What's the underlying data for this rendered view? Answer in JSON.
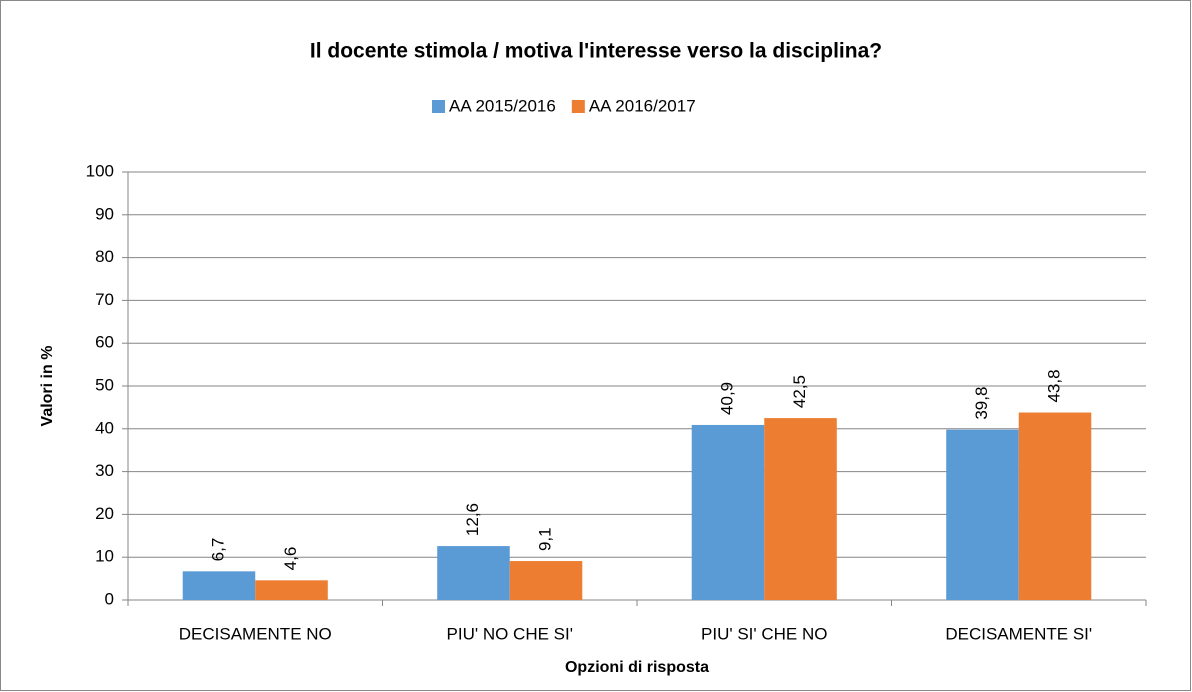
{
  "chart_data": {
    "type": "bar",
    "title": "Il docente stimola / motiva l'interesse verso la disciplina?",
    "x_label": "Opzioni di risposta",
    "y_label": "Valori in %",
    "categories": [
      "DECISAMENTE NO",
      "PIU' NO CHE SI'",
      "PIU' SI' CHE NO",
      "DECISAMENTE SI'"
    ],
    "series": [
      {
        "name": "AA 2015/2016",
        "color": "#5b9bd5",
        "values": [
          6.7,
          12.6,
          40.9,
          39.8
        ],
        "value_labels": [
          "6,7",
          "12,6",
          "40,9",
          "39,8"
        ]
      },
      {
        "name": "AA 2016/2017",
        "color": "#ed7d31",
        "values": [
          4.6,
          9.1,
          42.5,
          43.8
        ],
        "value_labels": [
          "4,6",
          "9,1",
          "42,5",
          "43,8"
        ]
      }
    ],
    "ylim": [
      0,
      100
    ],
    "yticks": [
      0,
      10,
      20,
      30,
      40,
      50,
      60,
      70,
      80,
      90,
      100
    ],
    "grid": true,
    "legend": "top"
  }
}
